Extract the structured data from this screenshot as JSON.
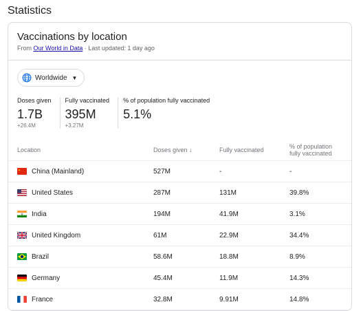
{
  "page_title": "Statistics",
  "card": {
    "title": "Vaccinations by location",
    "source_prefix": "From ",
    "source_link": "Our World in Data",
    "updated": " · Last updated: 1 day ago"
  },
  "scope_button": {
    "label": "Worldwide"
  },
  "stats": {
    "doses": {
      "label": "Doses given",
      "value": "1.7B",
      "delta": "+26.4M"
    },
    "fully": {
      "label": "Fully vaccinated",
      "value": "395M",
      "delta": "+3.27M"
    },
    "percent": {
      "label": "% of population fully vaccinated",
      "value": "5.1%"
    }
  },
  "table": {
    "headers": {
      "location": "Location",
      "doses": "Doses given",
      "doses_sort": "↓",
      "fully": "Fully vaccinated",
      "percent": "% of population fully vaccinated"
    },
    "rows": [
      {
        "location": "China (Mainland)",
        "doses": "527M",
        "fully": "-",
        "percent": "-",
        "flag": "china-flag-icon"
      },
      {
        "location": "United States",
        "doses": "287M",
        "fully": "131M",
        "percent": "39.8%",
        "flag": "us-flag-icon"
      },
      {
        "location": "India",
        "doses": "194M",
        "fully": "41.9M",
        "percent": "3.1%",
        "flag": "india-flag-icon"
      },
      {
        "location": "United Kingdom",
        "doses": "61M",
        "fully": "22.9M",
        "percent": "34.4%",
        "flag": "uk-flag-icon"
      },
      {
        "location": "Brazil",
        "doses": "58.6M",
        "fully": "18.8M",
        "percent": "8.9%",
        "flag": "brazil-flag-icon"
      },
      {
        "location": "Germany",
        "doses": "45.4M",
        "fully": "11.9M",
        "percent": "14.3%",
        "flag": "germany-flag-icon"
      },
      {
        "location": "France",
        "doses": "32.8M",
        "fully": "9.91M",
        "percent": "14.8%",
        "flag": "france-flag-icon"
      }
    ]
  },
  "colors": {
    "link": "#1a0dab",
    "border": "#dadce0",
    "muted": "#70757a",
    "globe": "#1a73e8"
  }
}
